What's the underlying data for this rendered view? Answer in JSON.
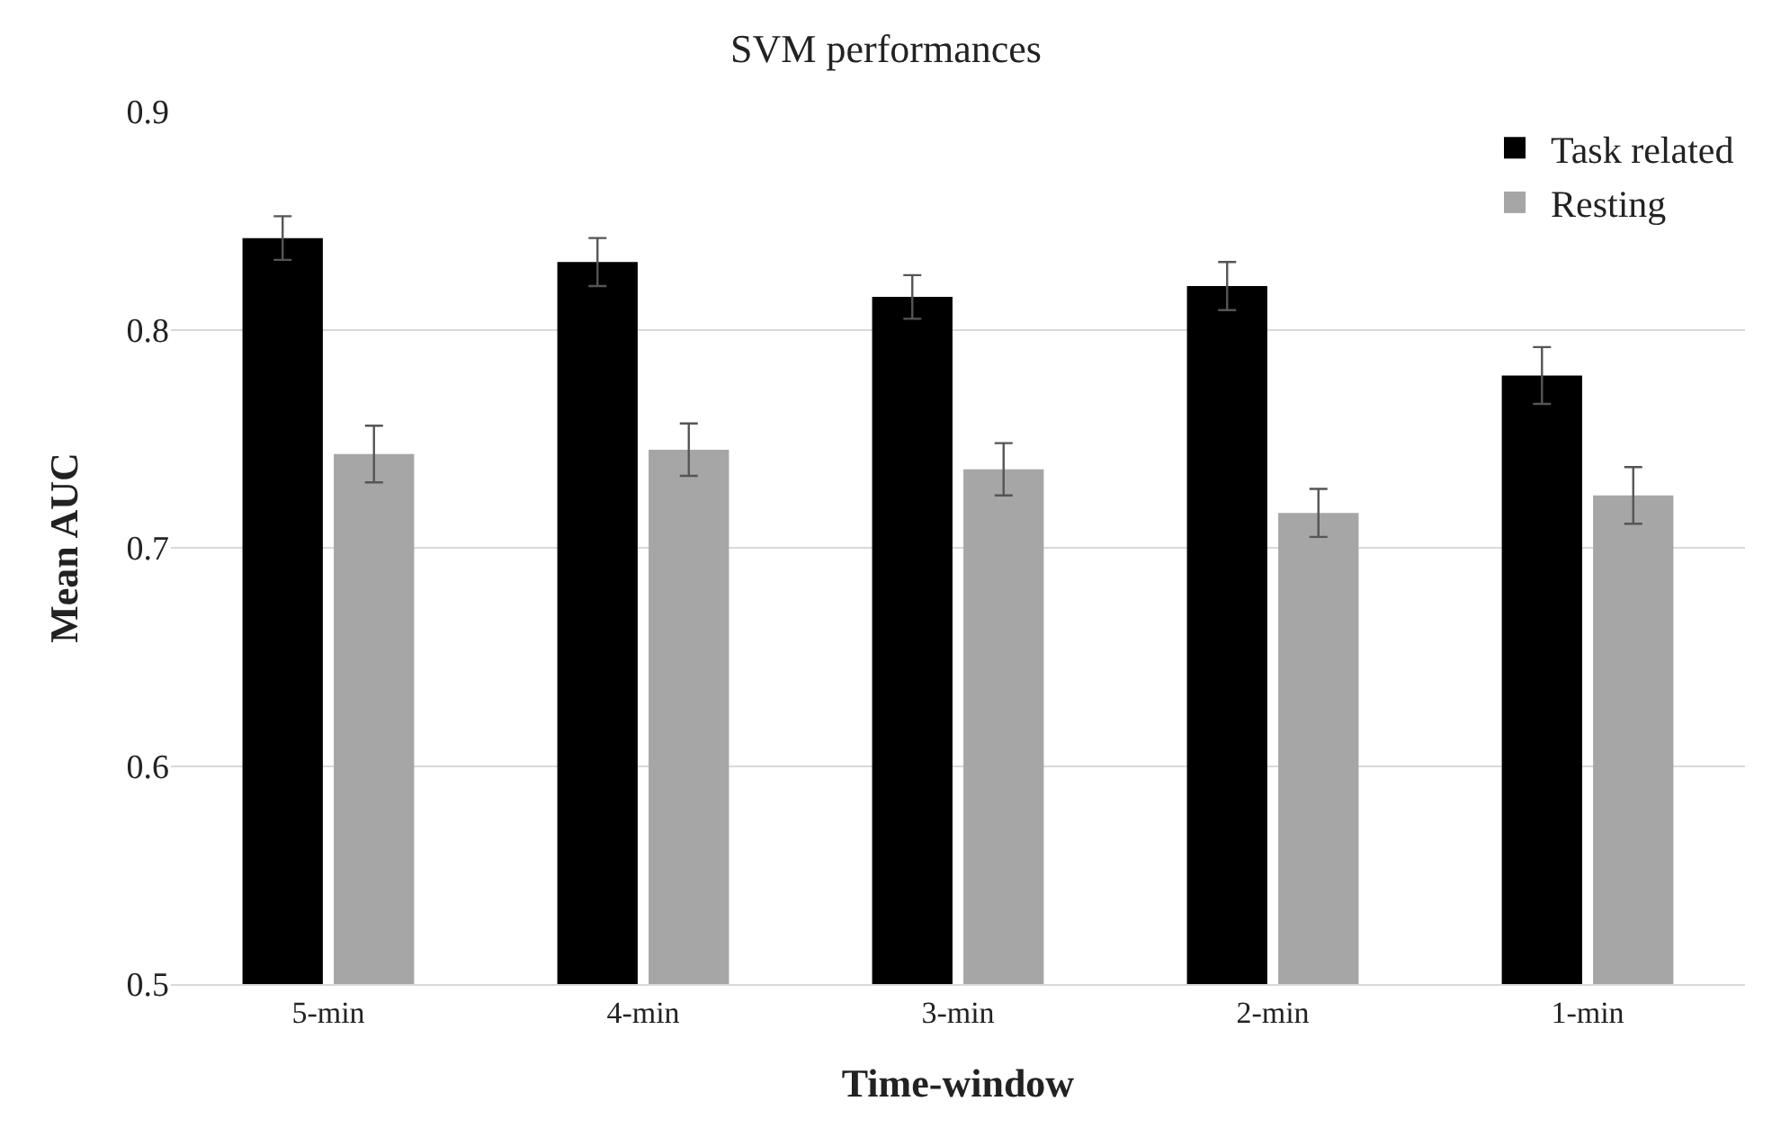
{
  "chart_data": {
    "type": "bar",
    "title": "SVM performances",
    "xlabel": "Time-window",
    "ylabel": "Mean AUC",
    "categories": [
      "5-min",
      "4-min",
      "3-min",
      "2-min",
      "1-min"
    ],
    "series": [
      {
        "name": "Task related",
        "color": "#000000",
        "values": [
          0.842,
          0.831,
          0.815,
          0.82,
          0.779
        ],
        "errors": [
          0.01,
          0.011,
          0.01,
          0.011,
          0.013
        ]
      },
      {
        "name": "Resting",
        "color": "#a6a6a6",
        "values": [
          0.743,
          0.745,
          0.736,
          0.716,
          0.724
        ],
        "errors": [
          0.013,
          0.012,
          0.012,
          0.011,
          0.013
        ]
      }
    ],
    "ylim": [
      0.5,
      0.9
    ],
    "yticks": [
      0.5,
      0.6,
      0.7,
      0.8,
      0.9
    ],
    "grid": "y",
    "legend": "top right"
  }
}
